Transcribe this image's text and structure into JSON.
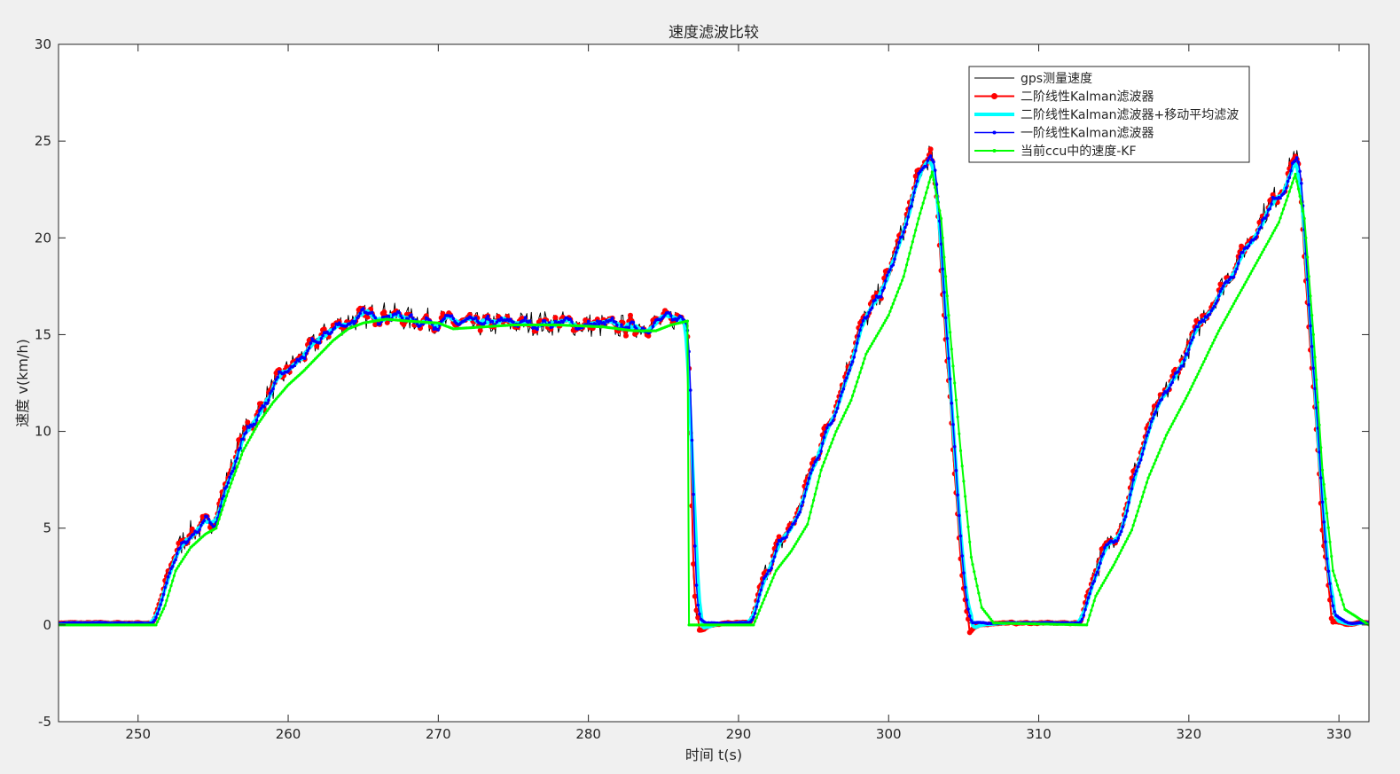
{
  "chart_data": {
    "type": "line",
    "title": "速度滤波比较",
    "xlabel": "时间 t(s)",
    "ylabel": "速度 v(km/h)",
    "xlim": [
      244.7,
      332
    ],
    "ylim": [
      -5,
      30
    ],
    "xticks": [
      250,
      260,
      270,
      280,
      290,
      300,
      310,
      320,
      330
    ],
    "yticks": [
      -5,
      0,
      5,
      10,
      15,
      20,
      25,
      30
    ],
    "grid": false,
    "legend_position": "top-right",
    "colors": {
      "background": "#f0f0f0",
      "axes": "#ffffff",
      "axis_line": "#262626",
      "gps": "#000000",
      "kf2": "#ff0000",
      "kf2ma": "#00ffff",
      "kf1": "#0000ff",
      "ccu": "#00ff00"
    },
    "series": [
      {
        "key": "gps",
        "name": "gps测量速度",
        "marker": "none"
      },
      {
        "key": "kf2",
        "name": "二阶线性Kalman滤波器",
        "marker": "dot"
      },
      {
        "key": "kf2ma",
        "name": "二阶线性Kalman滤波器+移动平均滤波",
        "marker": "dot"
      },
      {
        "key": "kf1",
        "name": "一阶线性Kalman滤波器",
        "marker": "dot"
      },
      {
        "key": "ccu",
        "name": "当前ccu中的速度-KF",
        "marker": "dot"
      }
    ],
    "base_profile": [
      [
        244.7,
        0.1
      ],
      [
        251.0,
        0.1
      ],
      [
        251.6,
        1.5
      ],
      [
        252.4,
        3.6
      ],
      [
        253.2,
        4.6
      ],
      [
        254.0,
        5.0
      ],
      [
        254.8,
        5.2
      ],
      [
        255.3,
        6.0
      ],
      [
        256.0,
        7.6
      ],
      [
        257.0,
        9.8
      ],
      [
        258.0,
        11.0
      ],
      [
        259.0,
        12.3
      ],
      [
        260.0,
        13.2
      ],
      [
        261.0,
        13.9
      ],
      [
        262.0,
        14.7
      ],
      [
        263.0,
        15.4
      ],
      [
        264.0,
        15.7
      ],
      [
        265.0,
        15.9
      ],
      [
        266.0,
        16.1
      ],
      [
        267.0,
        16.0
      ],
      [
        268.0,
        15.8
      ],
      [
        270.0,
        15.7
      ],
      [
        272.0,
        15.5
      ],
      [
        275.0,
        15.6
      ],
      [
        278.0,
        15.6
      ],
      [
        280.0,
        15.5
      ],
      [
        282.0,
        15.4
      ],
      [
        284.0,
        15.5
      ],
      [
        285.5,
        15.8
      ],
      [
        286.6,
        16.0
      ],
      [
        286.75,
        13.0
      ],
      [
        286.95,
        3.0
      ],
      [
        287.2,
        0.5
      ],
      [
        287.6,
        0.1
      ],
      [
        290.8,
        0.1
      ],
      [
        291.4,
        1.6
      ],
      [
        292.0,
        3.2
      ],
      [
        293.0,
        4.5
      ],
      [
        294.0,
        5.8
      ],
      [
        294.8,
        8.0
      ],
      [
        296.0,
        10.5
      ],
      [
        297.0,
        12.6
      ],
      [
        298.0,
        15.2
      ],
      [
        299.2,
        16.8
      ],
      [
        300.0,
        18.2
      ],
      [
        301.0,
        20.5
      ],
      [
        302.0,
        23.3
      ],
      [
        302.8,
        24.4
      ],
      [
        303.2,
        22.0
      ],
      [
        303.8,
        15.0
      ],
      [
        304.4,
        8.0
      ],
      [
        304.9,
        2.5
      ],
      [
        305.3,
        0.1
      ],
      [
        312.8,
        0.1
      ],
      [
        313.4,
        2.2
      ],
      [
        314.4,
        3.8
      ],
      [
        315.6,
        5.5
      ],
      [
        316.5,
        8.2
      ],
      [
        317.5,
        10.5
      ],
      [
        319.0,
        12.8
      ],
      [
        321.0,
        16.0
      ],
      [
        323.0,
        18.5
      ],
      [
        325.0,
        21.2
      ],
      [
        326.5,
        23.0
      ],
      [
        327.0,
        24.3
      ],
      [
        327.3,
        23.8
      ],
      [
        327.8,
        18.0
      ],
      [
        328.4,
        11.0
      ],
      [
        329.0,
        4.0
      ],
      [
        329.5,
        0.6
      ],
      [
        330.5,
        0.1
      ],
      [
        332.0,
        0.1
      ]
    ],
    "ccu_profile": [
      [
        244.7,
        0.0
      ],
      [
        251.2,
        0.0
      ],
      [
        251.8,
        1.0
      ],
      [
        252.5,
        2.8
      ],
      [
        253.5,
        4.0
      ],
      [
        254.5,
        4.7
      ],
      [
        255.2,
        5.0
      ],
      [
        256.0,
        6.9
      ],
      [
        257.0,
        9.0
      ],
      [
        258.0,
        10.4
      ],
      [
        259.0,
        11.5
      ],
      [
        260.0,
        12.4
      ],
      [
        261.0,
        13.1
      ],
      [
        262.0,
        13.9
      ],
      [
        263.0,
        14.7
      ],
      [
        264.0,
        15.3
      ],
      [
        265.0,
        15.6
      ],
      [
        266.5,
        15.8
      ],
      [
        268.0,
        15.7
      ],
      [
        270.0,
        15.6
      ],
      [
        271.0,
        15.3
      ],
      [
        273.0,
        15.4
      ],
      [
        275.0,
        15.5
      ],
      [
        278.0,
        15.5
      ],
      [
        281.0,
        15.4
      ],
      [
        283.0,
        15.2
      ],
      [
        284.5,
        15.2
      ],
      [
        285.5,
        15.5
      ],
      [
        286.6,
        15.7
      ],
      [
        286.65,
        0.0
      ],
      [
        291.0,
        0.0
      ],
      [
        291.8,
        1.5
      ],
      [
        292.5,
        2.8
      ],
      [
        293.5,
        3.8
      ],
      [
        294.6,
        5.2
      ],
      [
        295.5,
        8.0
      ],
      [
        296.5,
        10.0
      ],
      [
        297.5,
        11.6
      ],
      [
        298.5,
        14.0
      ],
      [
        300.0,
        16.0
      ],
      [
        301.0,
        18.0
      ],
      [
        302.0,
        21.0
      ],
      [
        302.9,
        23.4
      ],
      [
        303.5,
        21.0
      ],
      [
        304.0,
        16.0
      ],
      [
        304.8,
        9.0
      ],
      [
        305.5,
        3.5
      ],
      [
        306.2,
        0.9
      ],
      [
        307.0,
        0.1
      ],
      [
        313.2,
        0.0
      ],
      [
        313.8,
        1.5
      ],
      [
        315.0,
        3.1
      ],
      [
        316.2,
        4.9
      ],
      [
        317.3,
        7.6
      ],
      [
        318.5,
        9.8
      ],
      [
        320.0,
        12.0
      ],
      [
        322.0,
        15.2
      ],
      [
        324.0,
        18.0
      ],
      [
        326.0,
        20.8
      ],
      [
        327.1,
        23.3
      ],
      [
        327.7,
        21.0
      ],
      [
        328.3,
        15.0
      ],
      [
        328.9,
        8.0
      ],
      [
        329.6,
        2.8
      ],
      [
        330.4,
        0.8
      ],
      [
        332.0,
        0.0
      ]
    ]
  }
}
